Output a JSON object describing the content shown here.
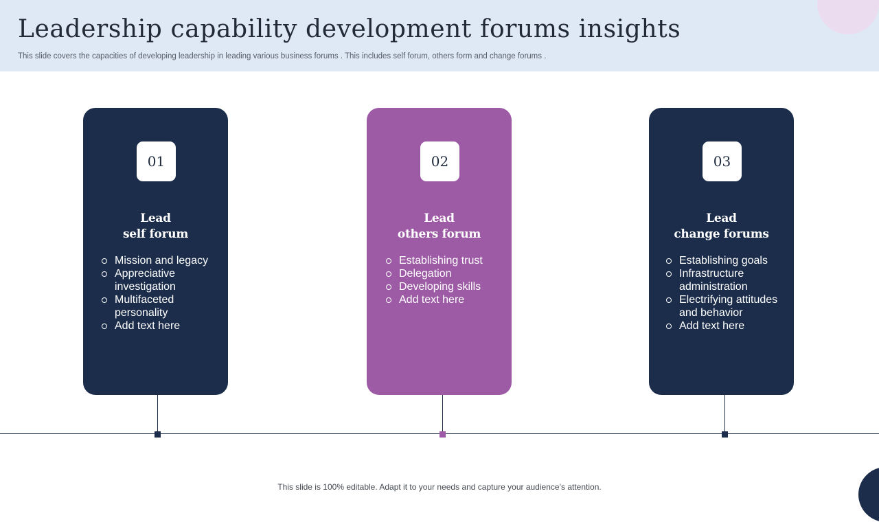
{
  "header": {
    "title": "Leadership capability development forums insights",
    "subtitle": "This slide covers the capacities of developing leadership in leading various business forums . This includes self forum, others form and change forums ."
  },
  "colors": {
    "navy": "#1b2d4a",
    "purple": "#9d5ba5",
    "header_bg": "#dfe8f5"
  },
  "forums": [
    {
      "number": "01",
      "title_line1": "Lead",
      "title_line2": "self forum",
      "items": [
        "Mission and legacy",
        "Appreciative investigation",
        "Multifaceted personality",
        "Add text here"
      ]
    },
    {
      "number": "02",
      "title_line1": "Lead",
      "title_line2": "others forum",
      "items": [
        "Establishing trust",
        "Delegation",
        "Developing skills",
        "Add text here"
      ]
    },
    {
      "number": "03",
      "title_line1": "Lead",
      "title_line2": "change forums",
      "items": [
        "Establishing goals",
        "Infrastructure administration",
        "Electrifying attitudes and behavior",
        "Add text here"
      ]
    }
  ],
  "footer": {
    "text": "This slide is 100% editable. Adapt it to your needs and capture your audience’s attention."
  }
}
